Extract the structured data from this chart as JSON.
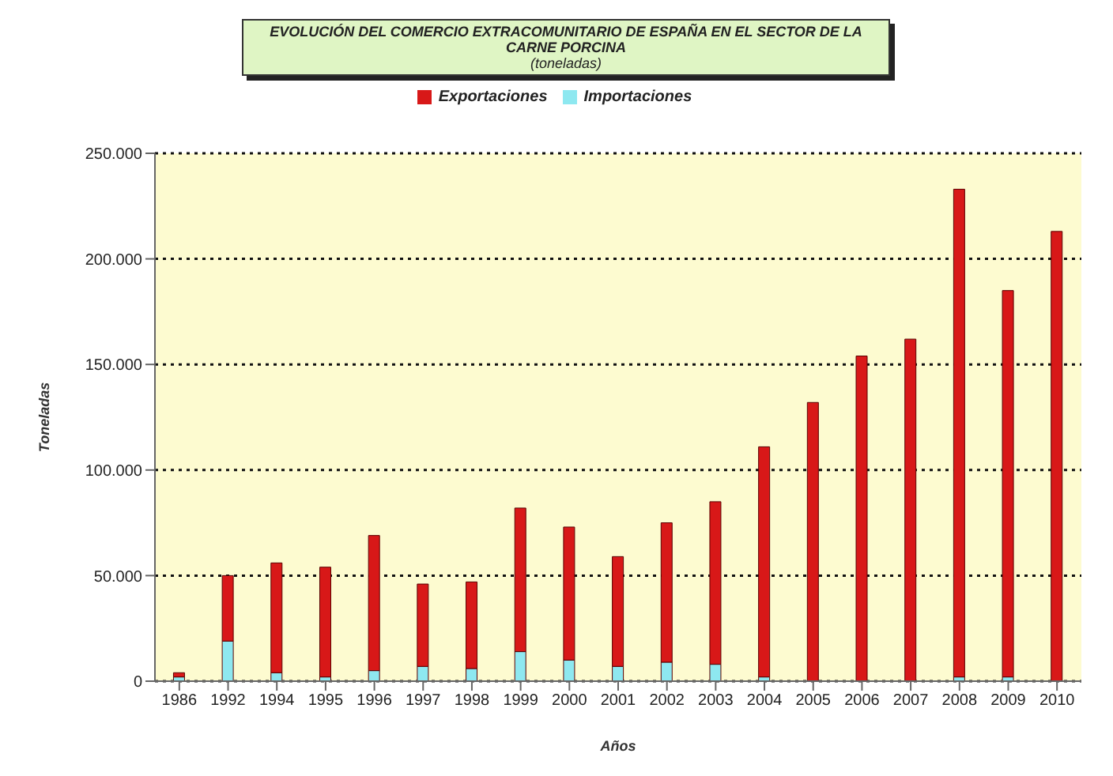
{
  "chart_data": {
    "type": "bar",
    "title": "EVOLUCIÓN DEL COMERCIO EXTRACOMUNITARIO DE ESPAÑA EN EL SECTOR DE LA CARNE PORCINA",
    "subtitle": "(toneladas)",
    "xlabel": "Años",
    "ylabel": "Toneladas",
    "stacked": true,
    "categories": [
      "1986",
      "1992",
      "1994",
      "1995",
      "1996",
      "1997",
      "1998",
      "1999",
      "2000",
      "2001",
      "2002",
      "2003",
      "2004",
      "2005",
      "2006",
      "2007",
      "2008",
      "2009",
      "2010"
    ],
    "series": [
      {
        "name": "Importaciones",
        "color": "#8ee8f0",
        "values": [
          2000,
          19000,
          4000,
          2000,
          5000,
          7000,
          6000,
          14000,
          10000,
          7000,
          9000,
          8000,
          2000,
          null,
          null,
          null,
          2000,
          2000,
          null
        ]
      },
      {
        "name": "Exportaciones",
        "color": "#d81818",
        "values": [
          2000,
          31000,
          52000,
          52000,
          64000,
          39000,
          41000,
          68000,
          63000,
          52000,
          66000,
          77000,
          109000,
          132000,
          154000,
          162000,
          231000,
          183000,
          213000
        ]
      }
    ],
    "ylim": [
      0,
      250000
    ],
    "yticks": [
      {
        "value": 0,
        "label": "0"
      },
      {
        "value": 50000,
        "label": "50.000"
      },
      {
        "value": 100000,
        "label": "100.000"
      },
      {
        "value": 150000,
        "label": "150.000"
      },
      {
        "value": 200000,
        "label": "200.000"
      },
      {
        "value": 250000,
        "label": "250.000"
      }
    ],
    "grid": "y",
    "legend": "top"
  }
}
